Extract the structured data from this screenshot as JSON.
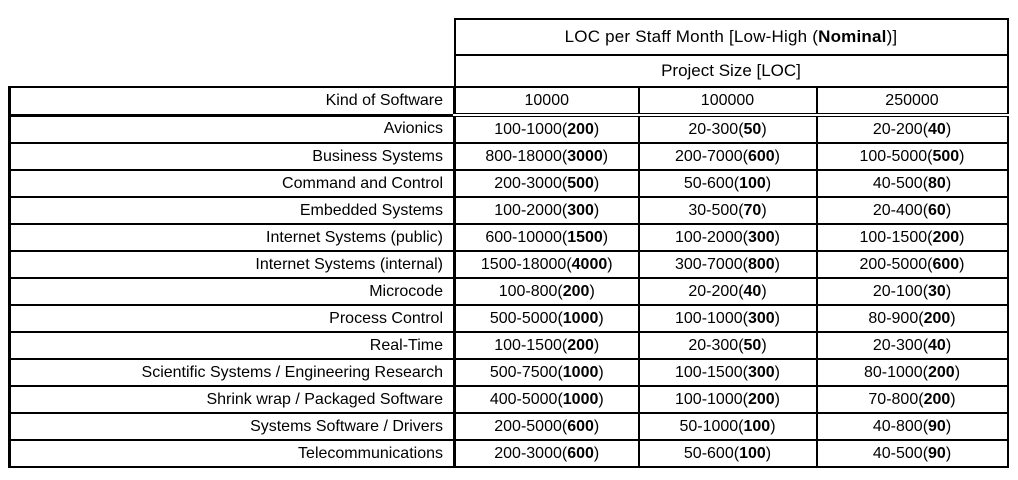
{
  "colors": {
    "border": "#000000",
    "text": "#000000",
    "background": "#ffffff"
  },
  "format": {
    "open_paren": "(",
    "close_paren": ")"
  },
  "chart_data": {
    "type": "table",
    "title": {
      "pre": "LOC per Staff Month [Low-High (",
      "bold": "Nominal",
      "post": ")]"
    },
    "subtitle": "Project Size [LOC]",
    "corner_header": "Kind of Software",
    "columns": [
      "10000",
      "100000",
      "250000"
    ],
    "rows": [
      {
        "kind": "Avionics",
        "cells": [
          {
            "range": "100-1000",
            "nominal": "200"
          },
          {
            "range": "20-300",
            "nominal": "50"
          },
          {
            "range": "20-200",
            "nominal": "40"
          }
        ]
      },
      {
        "kind": "Business Systems",
        "cells": [
          {
            "range": "800-18000",
            "nominal": "3000"
          },
          {
            "range": "200-7000",
            "nominal": "600"
          },
          {
            "range": "100-5000",
            "nominal": "500"
          }
        ]
      },
      {
        "kind": "Command and Control",
        "cells": [
          {
            "range": "200-3000",
            "nominal": "500"
          },
          {
            "range": "50-600",
            "nominal": "100"
          },
          {
            "range": "40-500",
            "nominal": "80"
          }
        ]
      },
      {
        "kind": "Embedded Systems",
        "cells": [
          {
            "range": "100-2000",
            "nominal": "300"
          },
          {
            "range": "30-500",
            "nominal": "70"
          },
          {
            "range": "20-400",
            "nominal": "60"
          }
        ]
      },
      {
        "kind": "Internet Systems (public)",
        "cells": [
          {
            "range": "600-10000",
            "nominal": "1500"
          },
          {
            "range": "100-2000",
            "nominal": "300"
          },
          {
            "range": "100-1500",
            "nominal": "200"
          }
        ]
      },
      {
        "kind": "Internet Systems (internal)",
        "cells": [
          {
            "range": "1500-18000",
            "nominal": "4000"
          },
          {
            "range": "300-7000",
            "nominal": "800"
          },
          {
            "range": "200-5000",
            "nominal": "600"
          }
        ]
      },
      {
        "kind": "Microcode",
        "cells": [
          {
            "range": "100-800",
            "nominal": "200"
          },
          {
            "range": "20-200",
            "nominal": "40"
          },
          {
            "range": "20-100",
            "nominal": "30"
          }
        ]
      },
      {
        "kind": "Process Control",
        "cells": [
          {
            "range": "500-5000",
            "nominal": "1000"
          },
          {
            "range": "100-1000",
            "nominal": "300"
          },
          {
            "range": "80-900",
            "nominal": "200"
          }
        ]
      },
      {
        "kind": "Real-Time",
        "cells": [
          {
            "range": "100-1500",
            "nominal": "200"
          },
          {
            "range": "20-300",
            "nominal": "50"
          },
          {
            "range": "20-300",
            "nominal": "40"
          }
        ]
      },
      {
        "kind": "Scientific Systems / Engineering Research",
        "cells": [
          {
            "range": "500-7500",
            "nominal": "1000"
          },
          {
            "range": "100-1500",
            "nominal": "300"
          },
          {
            "range": "80-1000",
            "nominal": "200"
          }
        ]
      },
      {
        "kind": "Shrink wrap / Packaged Software",
        "cells": [
          {
            "range": "400-5000",
            "nominal": "1000"
          },
          {
            "range": "100-1000",
            "nominal": "200"
          },
          {
            "range": "70-800",
            "nominal": "200"
          }
        ]
      },
      {
        "kind": "Systems Software / Drivers",
        "cells": [
          {
            "range": "200-5000",
            "nominal": "600"
          },
          {
            "range": "50-1000",
            "nominal": "100"
          },
          {
            "range": "40-800",
            "nominal": "90"
          }
        ]
      },
      {
        "kind": "Telecommunications",
        "cells": [
          {
            "range": "200-3000",
            "nominal": "600"
          },
          {
            "range": "50-600",
            "nominal": "100"
          },
          {
            "range": "40-500",
            "nominal": "90"
          }
        ]
      }
    ]
  }
}
